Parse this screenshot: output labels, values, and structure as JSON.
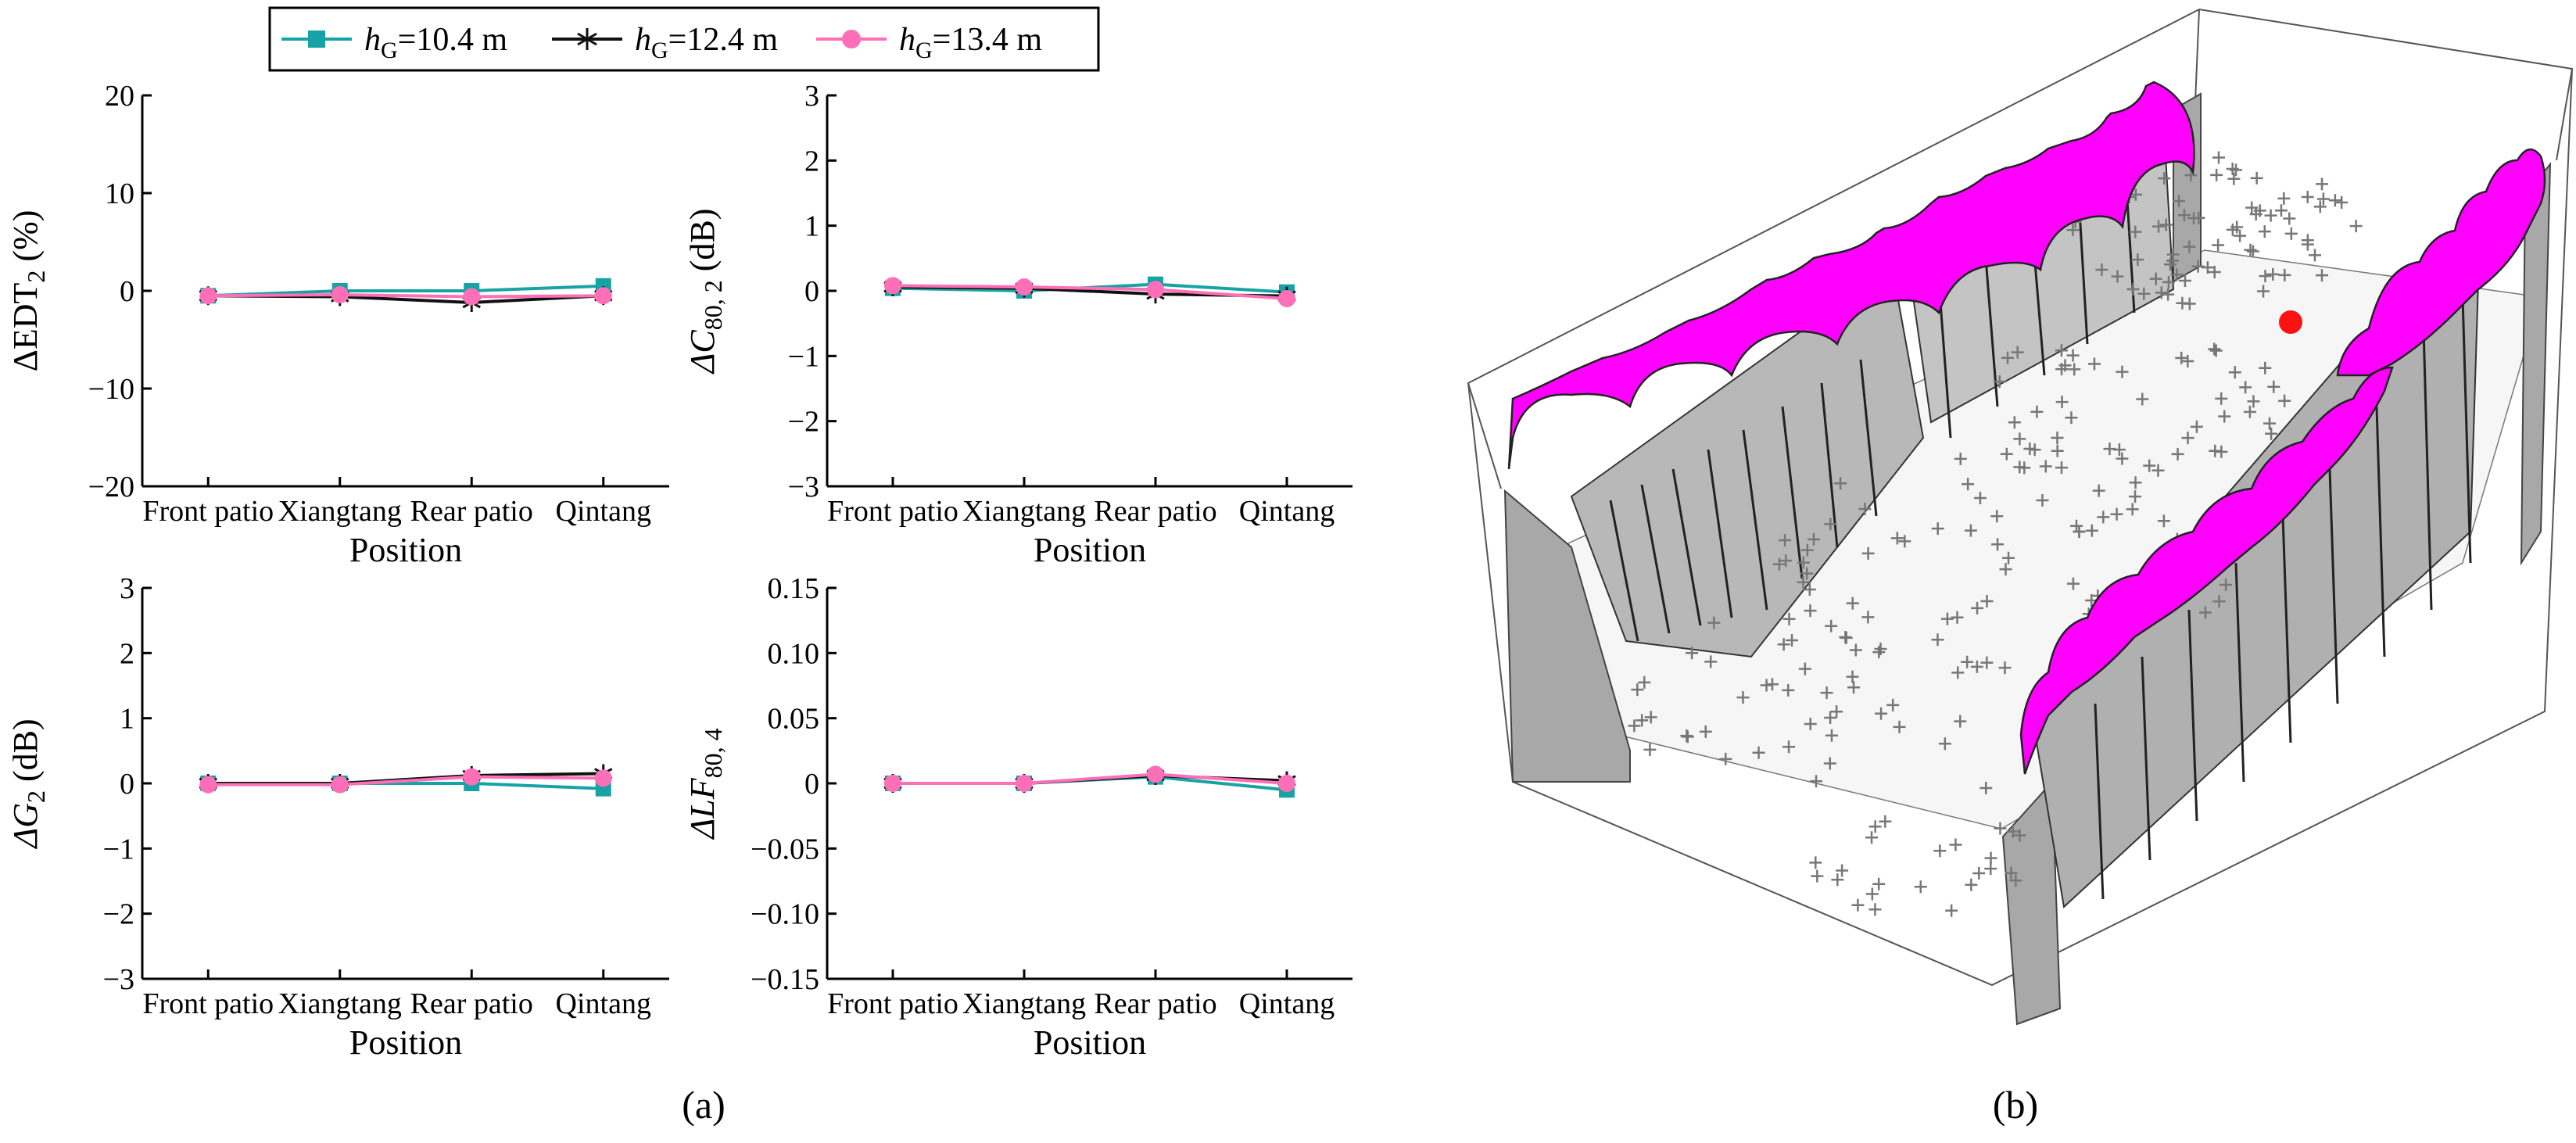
{
  "legend": {
    "entries": [
      {
        "sym": "h",
        "sub": "G",
        "rest": "=10.4 m",
        "color": "#17a3a6",
        "marker": "square"
      },
      {
        "sym": "h",
        "sub": "G",
        "rest": "=12.4 m",
        "color": "#111111",
        "marker": "asterisk"
      },
      {
        "sym": "h",
        "sub": "G",
        "rest": "=13.4 m",
        "color": "#ff6fb7",
        "marker": "circle"
      }
    ]
  },
  "captions": {
    "a": "(a)",
    "b": "(b)"
  },
  "colors": {
    "surface": "#ff00ff",
    "source": "#ff1111",
    "wall": "#a8a8a8",
    "receivers": "#777777"
  },
  "chart_data": [
    {
      "type": "line",
      "panel": "top-left",
      "title": "",
      "ylabel_prefix": "ΔEDT",
      "ylabel_sub": "2",
      "ylabel_suffix": " (%)",
      "xlabel": "Position",
      "categories": [
        "Front patio",
        "Xiangtang",
        "Rear patio",
        "Qintang"
      ],
      "ylim": [
        -20,
        20
      ],
      "yticks": [
        -20,
        -10,
        0,
        10,
        20
      ],
      "ytick_labels": [
        "−20",
        "−10",
        "0",
        "10",
        "20"
      ],
      "series": [
        {
          "name": "hG=10.4 m",
          "values": [
            -0.5,
            0,
            0,
            0.5
          ]
        },
        {
          "name": "hG=12.4 m",
          "values": [
            -0.5,
            -0.6,
            -1.2,
            -0.5
          ]
        },
        {
          "name": "hG=13.4 m",
          "values": [
            -0.5,
            -0.4,
            -0.6,
            -0.5
          ]
        }
      ]
    },
    {
      "type": "line",
      "panel": "top-right",
      "title": "",
      "ylabel_prefix": "ΔC",
      "ylabel_sub": "80, 2",
      "ylabel_suffix": " (dB)",
      "xlabel": "Position",
      "categories": [
        "Front patio",
        "Xiangtang",
        "Rear patio",
        "Qintang"
      ],
      "ylim": [
        -3,
        3
      ],
      "yticks": [
        -3,
        -2,
        -1,
        0,
        1,
        2,
        3
      ],
      "ytick_labels": [
        "−3",
        "−2",
        "−1",
        "0",
        "1",
        "2",
        "3"
      ],
      "series": [
        {
          "name": "hG=10.4 m",
          "values": [
            0.04,
            0.0,
            0.1,
            -0.02
          ]
        },
        {
          "name": "hG=12.4 m",
          "values": [
            0.06,
            0.04,
            -0.05,
            -0.08
          ]
        },
        {
          "name": "hG=13.4 m",
          "values": [
            0.08,
            0.06,
            0.02,
            -0.12
          ]
        }
      ]
    },
    {
      "type": "line",
      "panel": "bottom-left",
      "title": "",
      "ylabel_prefix": "ΔG",
      "ylabel_sub": "2",
      "ylabel_suffix": " (dB)",
      "xlabel": "Position",
      "categories": [
        "Front patio",
        "Xiangtang",
        "Rear patio",
        "Qintang"
      ],
      "ylim": [
        -3,
        3
      ],
      "yticks": [
        -3,
        -2,
        -1,
        0,
        1,
        2,
        3
      ],
      "ytick_labels": [
        "−3",
        "−2",
        "−1",
        "0",
        "1",
        "2",
        "3"
      ],
      "series": [
        {
          "name": "hG=10.4 m",
          "values": [
            0.0,
            0.0,
            0.0,
            -0.08
          ]
        },
        {
          "name": "hG=12.4 m",
          "values": [
            0.0,
            0.0,
            0.12,
            0.15
          ]
        },
        {
          "name": "hG=13.4 m",
          "values": [
            -0.02,
            -0.02,
            0.1,
            0.08
          ]
        }
      ]
    },
    {
      "type": "line",
      "panel": "bottom-right",
      "title": "",
      "ylabel_prefix": "ΔLF",
      "ylabel_sub": "80, 4",
      "ylabel_suffix": "",
      "xlabel": "Position",
      "categories": [
        "Front patio",
        "Xiangtang",
        "Rear patio",
        "Qintang"
      ],
      "ylim": [
        -0.15,
        0.15
      ],
      "yticks": [
        -0.15,
        -0.1,
        -0.05,
        0,
        0.05,
        0.1,
        0.15
      ],
      "ytick_labels": [
        "−0.15",
        "−0.10",
        "−0.05",
        "0",
        "0.05",
        "0.10",
        "0.15"
      ],
      "series": [
        {
          "name": "hG=10.4 m",
          "values": [
            0.0,
            0.0,
            0.005,
            -0.005
          ]
        },
        {
          "name": "hG=12.4 m",
          "values": [
            0.0,
            0.0,
            0.006,
            0.002
          ]
        },
        {
          "name": "hG=13.4 m",
          "values": [
            0.0,
            0.0,
            0.007,
            0.0
          ]
        }
      ]
    }
  ]
}
